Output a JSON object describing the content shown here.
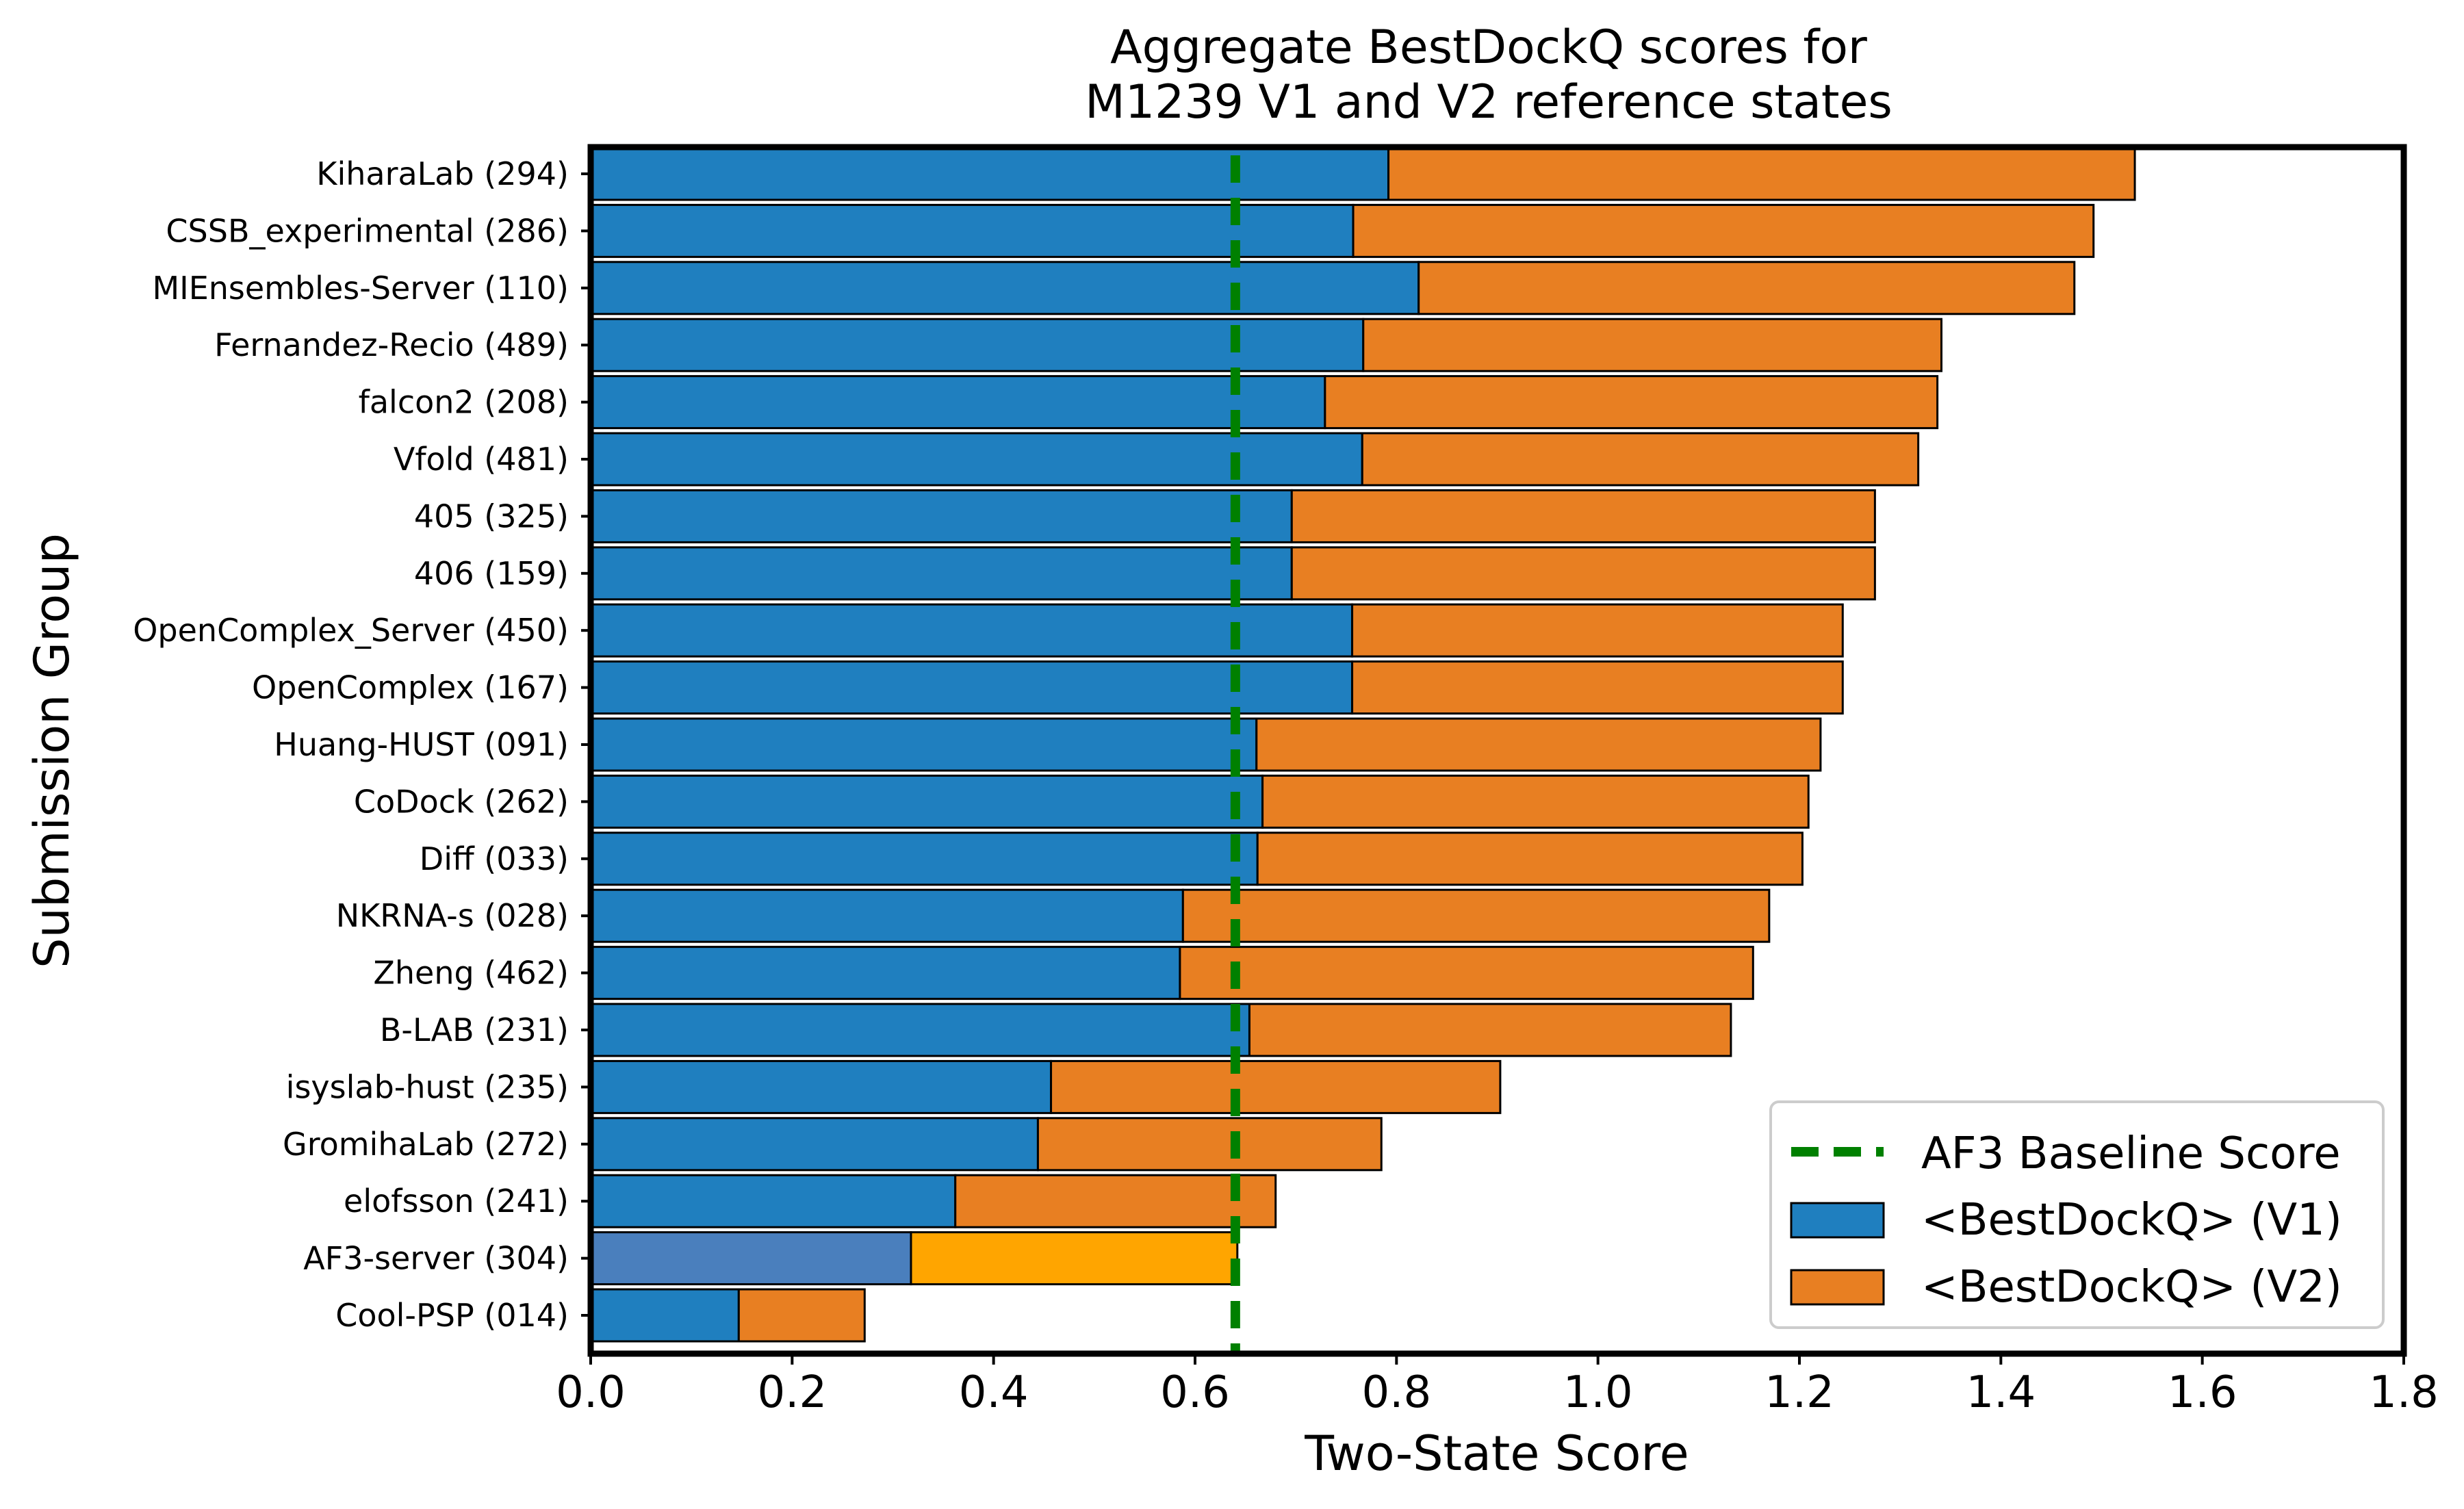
{
  "chart_data": {
    "type": "bar",
    "orientation": "horizontal",
    "stacked": true,
    "title_lines": [
      "Aggregate BestDockQ scores for",
      "M1239 V1 and V2 reference states"
    ],
    "xlabel": "Two-State Score",
    "ylabel": "Submission Group",
    "xlim": [
      0.0,
      1.8
    ],
    "xticks": [
      0.0,
      0.2,
      0.4,
      0.6,
      0.8,
      1.0,
      1.2,
      1.4,
      1.6,
      1.8
    ],
    "xtick_labels": [
      "0.0",
      "0.2",
      "0.4",
      "0.6",
      "0.8",
      "1.0",
      "1.2",
      "1.4",
      "1.6",
      "1.8"
    ],
    "grid": false,
    "legend_position": "bottom-right",
    "baseline": {
      "label": "AF3 Baseline Score",
      "value": 0.64,
      "color": "#008000",
      "style": "dashed"
    },
    "categories": [
      "KiharaLab (294)",
      "CSSB_experimental (286)",
      "MIEnsembles-Server (110)",
      "Fernandez-Recio (489)",
      "falcon2 (208)",
      "Vfold (481)",
      "405 (325)",
      "406 (159)",
      "OpenComplex_Server (450)",
      "OpenComplex (167)",
      "Huang-HUST (091)",
      "CoDock (262)",
      "Diff (033)",
      "NKRNA-s (028)",
      "Zheng (462)",
      "B-LAB (231)",
      "isyslab-hust (235)",
      "GromihaLab (272)",
      "elofsson (241)",
      "AF3-server (304)",
      "Cool-PSP (014)"
    ],
    "series": [
      {
        "name": "<BestDockQ> (V1)",
        "color": "#1f7fbf",
        "values": [
          0.792,
          0.757,
          0.822,
          0.767,
          0.729,
          0.766,
          0.696,
          0.696,
          0.756,
          0.756,
          0.661,
          0.667,
          0.662,
          0.588,
          0.585,
          0.654,
          0.457,
          0.444,
          0.362,
          0.318,
          0.147
        ]
      },
      {
        "name": "<BestDockQ> (V2)",
        "color": "#e87f22",
        "values": [
          0.741,
          0.735,
          0.651,
          0.574,
          0.608,
          0.552,
          0.579,
          0.579,
          0.487,
          0.487,
          0.56,
          0.542,
          0.541,
          0.582,
          0.569,
          0.478,
          0.446,
          0.341,
          0.318,
          0.324,
          0.125
        ]
      }
    ],
    "highlight": {
      "category": "AF3-server (304)",
      "v1_color": "#4a7fbd",
      "v2_color": "#ffa500"
    }
  }
}
